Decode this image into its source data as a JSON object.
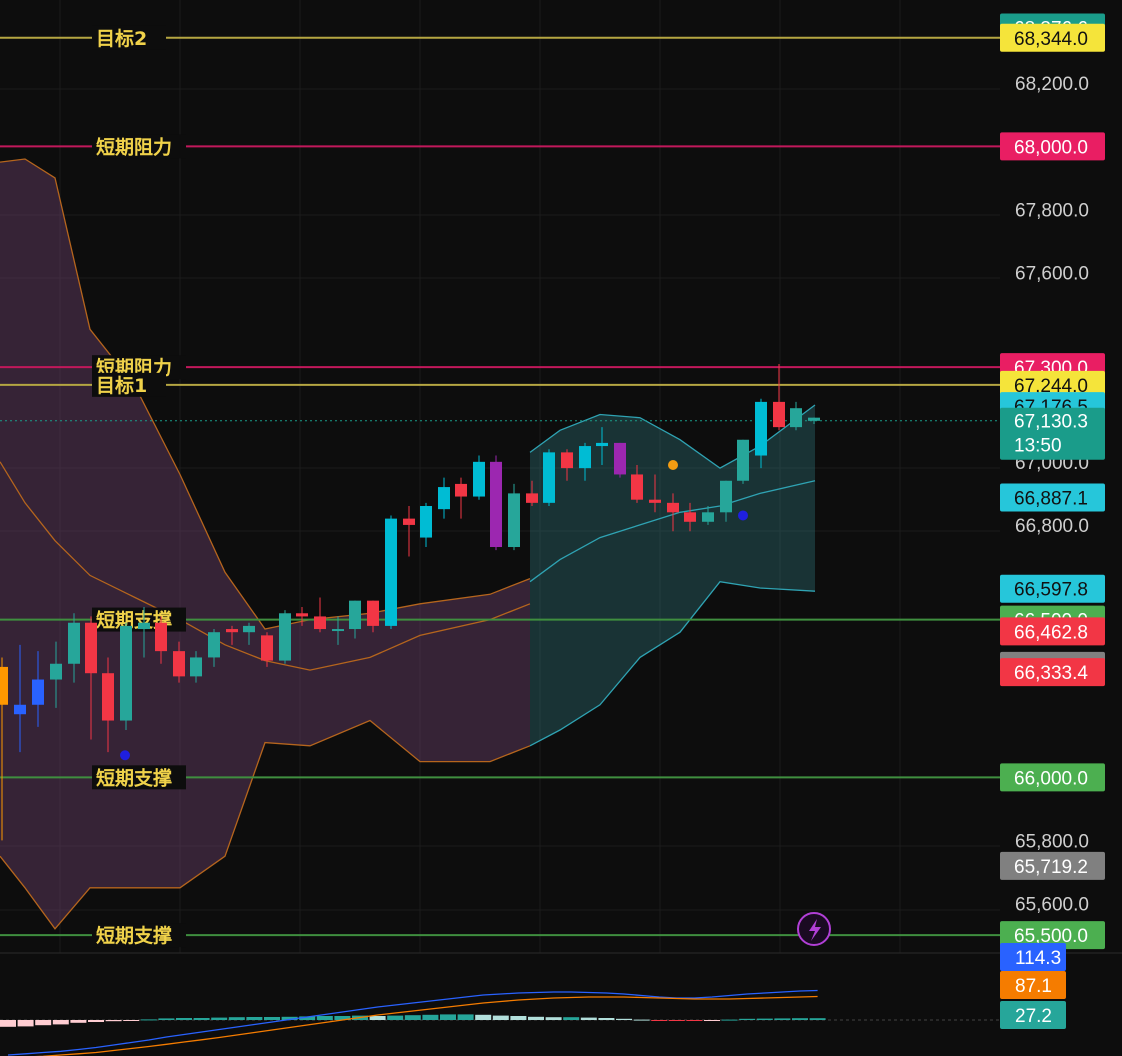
{
  "chart_data": {
    "type": "candlestick",
    "price_axis": {
      "ticks": [
        "68,200.0",
        "67,800.0",
        "67,600.0",
        "67,000.0",
        "66,800.0",
        "65,800.0",
        "65,600.0"
      ],
      "range": [
        65600,
        68400
      ]
    },
    "horizontal_lines": [
      {
        "label": "目标2",
        "price": 68344.0,
        "price_label": "68,344.0",
        "color": "#b5a642",
        "badge_bg": "#f5e43a",
        "badge_fg": "#111111"
      },
      {
        "label": "短期阻力",
        "price": 68000.0,
        "price_label": "68,000.0",
        "color": "#c2185b",
        "badge_bg": "#e91e63",
        "badge_fg": "#ffffff"
      },
      {
        "label": "短期阻力",
        "price": 67300.0,
        "price_label": "67,300.0",
        "color": "#c2185b",
        "badge_bg": "#e91e63",
        "badge_fg": "#ffffff"
      },
      {
        "label": "目标1",
        "price": 67244.0,
        "price_label": "67,244.0",
        "color": "#b5a642",
        "badge_bg": "#f5e43a",
        "badge_fg": "#111111"
      },
      {
        "label": "短期支撑",
        "price": 66500.0,
        "price_label": "66,500.0",
        "color": "#3f8f3f",
        "badge_bg": "#4caf50",
        "badge_fg": "#ffffff"
      },
      {
        "label": "短期支撑",
        "price": 66000.0,
        "price_label": "66,000.0",
        "color": "#3f8f3f",
        "badge_bg": "#4caf50",
        "badge_fg": "#ffffff"
      },
      {
        "label": "短期支撑",
        "price": 65500.0,
        "price_label": "65,500.0",
        "color": "#3f8f3f",
        "badge_bg": "#4caf50",
        "badge_fg": "#ffffff"
      }
    ],
    "price_badges": [
      {
        "price": 68376.6,
        "text": "68,376.6",
        "bg": "#1a9c8a",
        "fg": "#ffffff"
      },
      {
        "price": 67176.5,
        "text": "67,176.5",
        "bg": "#26c6da",
        "fg": "#111111"
      },
      {
        "price": 66887.1,
        "text": "66,887.1",
        "bg": "#26c6da",
        "fg": "#111111"
      },
      {
        "price": 66597.8,
        "text": "66,597.8",
        "bg": "#26c6da",
        "fg": "#111111"
      },
      {
        "price": 66462.8,
        "text": "66,462.8",
        "bg": "#f23645",
        "fg": "#ffffff"
      },
      {
        "price": 66353.2,
        "text": "66,353.2",
        "bg": "#808080",
        "fg": "#ffffff"
      },
      {
        "price": 66333.4,
        "text": "66,333.4",
        "bg": "#f23645",
        "fg": "#ffffff"
      },
      {
        "price": 65719.2,
        "text": "65,719.2",
        "bg": "#808080",
        "fg": "#ffffff"
      }
    ],
    "current_price": {
      "price": 67130.3,
      "text": "67,130.3",
      "countdown": "13:50",
      "bg": "#1a9c8a"
    },
    "candles": [
      {
        "x": 2,
        "o": 66350,
        "h": 66380,
        "c": 66230,
        "l": 65800,
        "col": "#ff9800"
      },
      {
        "x": 20,
        "o": 66200,
        "h": 66420,
        "c": 66230,
        "l": 66080,
        "col": "#2962ff"
      },
      {
        "x": 38,
        "o": 66230,
        "h": 66400,
        "c": 66310,
        "l": 66160,
        "col": "#2962ff"
      },
      {
        "x": 56,
        "o": 66310,
        "h": 66430,
        "c": 66360,
        "l": 66220,
        "col": "#26a69a"
      },
      {
        "x": 74,
        "o": 66360,
        "h": 66520,
        "c": 66490,
        "l": 66300,
        "col": "#26a69a"
      },
      {
        "x": 91,
        "o": 66490,
        "h": 66510,
        "c": 66330,
        "l": 66120,
        "col": "#f23645"
      },
      {
        "x": 108,
        "o": 66330,
        "h": 66380,
        "c": 66180,
        "l": 66080,
        "col": "#f23645"
      },
      {
        "x": 126,
        "o": 66180,
        "h": 66490,
        "c": 66480,
        "l": 66150,
        "col": "#26a69a"
      },
      {
        "x": 144,
        "o": 66470,
        "h": 66540,
        "c": 66490,
        "l": 66380,
        "col": "#26a69a"
      },
      {
        "x": 161,
        "o": 66490,
        "h": 66510,
        "c": 66400,
        "l": 66360,
        "col": "#f23645"
      },
      {
        "x": 179,
        "o": 66400,
        "h": 66430,
        "c": 66320,
        "l": 66300,
        "col": "#f23645"
      },
      {
        "x": 196,
        "o": 66320,
        "h": 66400,
        "c": 66380,
        "l": 66300,
        "col": "#26a69a"
      },
      {
        "x": 214,
        "o": 66380,
        "h": 66470,
        "c": 66460,
        "l": 66350,
        "col": "#26a69a"
      },
      {
        "x": 232,
        "o": 66470,
        "h": 66480,
        "c": 66460,
        "l": 66420,
        "col": "#f23645"
      },
      {
        "x": 249,
        "o": 66460,
        "h": 66490,
        "c": 66480,
        "l": 66420,
        "col": "#26a69a"
      },
      {
        "x": 267,
        "o": 66450,
        "h": 66460,
        "c": 66370,
        "l": 66350,
        "col": "#f23645"
      },
      {
        "x": 285,
        "o": 66370,
        "h": 66530,
        "c": 66520,
        "l": 66360,
        "col": "#26a69a"
      },
      {
        "x": 302,
        "o": 66520,
        "h": 66540,
        "c": 66510,
        "l": 66480,
        "col": "#f23645"
      },
      {
        "x": 320,
        "o": 66510,
        "h": 66570,
        "c": 66470,
        "l": 66460,
        "col": "#f23645"
      },
      {
        "x": 338,
        "o": 66470,
        "h": 66510,
        "c": 66470,
        "l": 66420,
        "col": "#26a69a"
      },
      {
        "x": 355,
        "o": 66470,
        "h": 66560,
        "c": 66560,
        "l": 66440,
        "col": "#26a69a"
      },
      {
        "x": 373,
        "o": 66560,
        "h": 66560,
        "c": 66480,
        "l": 66460,
        "col": "#f23645"
      },
      {
        "x": 391,
        "o": 66480,
        "h": 66830,
        "c": 66820,
        "l": 66470,
        "col": "#00bcd4"
      },
      {
        "x": 409,
        "o": 66820,
        "h": 66860,
        "c": 66800,
        "l": 66700,
        "col": "#f23645"
      },
      {
        "x": 426,
        "o": 66760,
        "h": 66870,
        "c": 66860,
        "l": 66730,
        "col": "#00bcd4"
      },
      {
        "x": 444,
        "o": 66850,
        "h": 66950,
        "c": 66920,
        "l": 66820,
        "col": "#00bcd4"
      },
      {
        "x": 461,
        "o": 66930,
        "h": 66950,
        "c": 66890,
        "l": 66820,
        "col": "#f23645"
      },
      {
        "x": 479,
        "o": 66890,
        "h": 67020,
        "c": 67000,
        "l": 66880,
        "col": "#00bcd4"
      },
      {
        "x": 496,
        "o": 67000,
        "h": 67020,
        "c": 66730,
        "l": 66720,
        "col": "#9c27b0"
      },
      {
        "x": 514,
        "o": 66730,
        "h": 66930,
        "c": 66900,
        "l": 66720,
        "col": "#26a69a"
      },
      {
        "x": 532,
        "o": 66900,
        "h": 66940,
        "c": 66870,
        "l": 66860,
        "col": "#f23645"
      },
      {
        "x": 549,
        "o": 66870,
        "h": 67040,
        "c": 67030,
        "l": 66860,
        "col": "#00bcd4"
      },
      {
        "x": 567,
        "o": 67030,
        "h": 67040,
        "c": 66980,
        "l": 66940,
        "col": "#f23645"
      },
      {
        "x": 585,
        "o": 66980,
        "h": 67060,
        "c": 67050,
        "l": 66940,
        "col": "#00bcd4"
      },
      {
        "x": 602,
        "o": 67050,
        "h": 67110,
        "c": 67060,
        "l": 66990,
        "col": "#00bcd4"
      },
      {
        "x": 620,
        "o": 67060,
        "h": 67060,
        "c": 66960,
        "l": 66950,
        "col": "#9c27b0"
      },
      {
        "x": 637,
        "o": 66960,
        "h": 66990,
        "c": 66880,
        "l": 66870,
        "col": "#f23645"
      },
      {
        "x": 655,
        "o": 66880,
        "h": 66960,
        "c": 66870,
        "l": 66840,
        "col": "#f23645"
      },
      {
        "x": 673,
        "o": 66870,
        "h": 66900,
        "c": 66840,
        "l": 66780,
        "col": "#f23645"
      },
      {
        "x": 690,
        "o": 66840,
        "h": 66870,
        "c": 66810,
        "l": 66780,
        "col": "#f23645"
      },
      {
        "x": 708,
        "o": 66810,
        "h": 66860,
        "c": 66840,
        "l": 66800,
        "col": "#26a69a"
      },
      {
        "x": 726,
        "o": 66840,
        "h": 66940,
        "c": 66940,
        "l": 66810,
        "col": "#26a69a"
      },
      {
        "x": 743,
        "o": 66940,
        "h": 67070,
        "c": 67070,
        "l": 66930,
        "col": "#26a69a"
      },
      {
        "x": 761,
        "o": 67020,
        "h": 67200,
        "c": 67190,
        "l": 66980,
        "col": "#00bcd4"
      },
      {
        "x": 779,
        "o": 67190,
        "h": 67310,
        "c": 67110,
        "l": 67100,
        "col": "#f23645"
      },
      {
        "x": 796,
        "o": 67110,
        "h": 67190,
        "c": 67170,
        "l": 67100,
        "col": "#26a69a"
      },
      {
        "x": 814,
        "o": 67140,
        "h": 67140,
        "c": 67130,
        "l": 67120,
        "col": "#26a69a"
      }
    ],
    "dots": [
      {
        "x": 125,
        "price": 66070,
        "color": "#1f1fe0"
      },
      {
        "x": 673,
        "price": 66990,
        "color": "#f39c12"
      },
      {
        "x": 743,
        "price": 66830,
        "color": "#1f1fe0"
      }
    ],
    "bands_purple": {
      "x": [
        0,
        25,
        55,
        90,
        135,
        180,
        225,
        265,
        310,
        370,
        420,
        490,
        530
      ],
      "upper": [
        67950,
        67960,
        67900,
        67420,
        67240,
        66960,
        66650,
        66470,
        66500,
        66520,
        66550,
        66580,
        66630
      ],
      "lower": [
        65750,
        65650,
        65520,
        65650,
        65650,
        65650,
        65750,
        66110,
        66100,
        66180,
        66050,
        66050,
        66100
      ],
      "basis": [
        67000,
        66870,
        66750,
        66640,
        66570,
        66500,
        66420,
        66370,
        66340,
        66380,
        66450,
        66500,
        66550
      ]
    },
    "bands_teal": {
      "x": [
        530,
        560,
        600,
        640,
        680,
        720,
        760,
        815
      ],
      "upper": [
        67030,
        67100,
        67150,
        67140,
        67070,
        66980,
        67050,
        67180
      ],
      "lower": [
        66100,
        66150,
        66230,
        66380,
        66460,
        66620,
        66600,
        66590
      ],
      "basis": [
        66620,
        66690,
        66760,
        66800,
        66840,
        66860,
        66900,
        66940
      ]
    },
    "macd": {
      "badges": [
        {
          "text": "114.3",
          "bg": "#2962ff",
          "fg": "#ffffff"
        },
        {
          "text": "87.1",
          "bg": "#f57c00",
          "fg": "#ffffff"
        },
        {
          "text": "27.2",
          "bg": "#26a69a",
          "fg": "#ffffff"
        }
      ],
      "histogram": [
        -34,
        -32,
        -26,
        -22,
        -14,
        -10,
        -6,
        -3,
        3,
        8,
        10,
        10,
        12,
        14,
        15,
        15,
        16,
        18,
        20,
        20,
        22,
        20,
        22,
        24,
        26,
        28,
        28,
        26,
        22,
        20,
        16,
        14,
        14,
        12,
        10,
        6,
        2,
        -2,
        -4,
        -4,
        -2,
        2,
        6,
        7,
        8,
        9,
        9
      ],
      "macd_line": [
        -140,
        -135,
        -130,
        -125,
        -118,
        -110,
        -100,
        -90,
        -80,
        -68,
        -58,
        -48,
        -38,
        -28,
        -18,
        -8,
        2,
        12,
        22,
        32,
        42,
        52,
        60,
        68,
        76,
        84,
        92,
        100,
        104,
        108,
        110,
        112,
        112,
        110,
        108,
        104,
        98,
        92,
        88,
        88,
        92,
        98,
        104,
        108,
        112,
        116,
        118
      ],
      "signal_line": [
        -150,
        -148,
        -145,
        -140,
        -135,
        -130,
        -122,
        -114,
        -106,
        -97,
        -88,
        -79,
        -70,
        -60,
        -50,
        -40,
        -30,
        -20,
        -10,
        0,
        10,
        20,
        28,
        36,
        44,
        52,
        60,
        68,
        74,
        80,
        84,
        88,
        90,
        92,
        92,
        92,
        90,
        88,
        86,
        84,
        84,
        84,
        86,
        88,
        90,
        92,
        94
      ]
    }
  }
}
